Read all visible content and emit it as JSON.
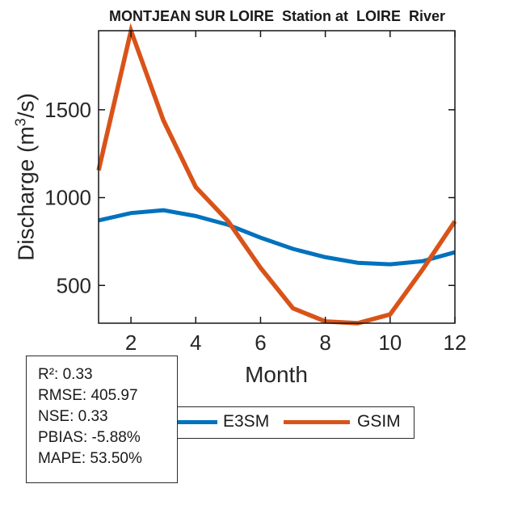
{
  "title": "MONTJEAN SUR LOIRE  Station at  LOIRE  River",
  "axes": {
    "xlabel": "Month",
    "ylabel_prefix": "Discharge (m",
    "ylabel_sup": "3",
    "ylabel_suffix": "/s)"
  },
  "stats_box": {
    "lines": [
      "R²: 0.33",
      "RMSE: 405.97",
      "NSE: 0.33",
      "PBIAS: -5.88%",
      "MAPE: 53.50%"
    ]
  },
  "legend": {
    "entries": [
      {
        "label": "E3SM",
        "color": "#0072BD"
      },
      {
        "label": "GSIM",
        "color": "#D95319"
      }
    ]
  },
  "colors": {
    "e3sm_line": "#0072BD",
    "gsim_line": "#D95319",
    "axis": "#151515",
    "tick_text": "#262626"
  },
  "chart_data": {
    "type": "line",
    "title": "MONTJEAN SUR LOIRE  Station at  LOIRE  River",
    "xlabel": "Month",
    "ylabel": "Discharge (m³/s)",
    "x": [
      1,
      2,
      3,
      4,
      5,
      6,
      7,
      8,
      9,
      10,
      11,
      12
    ],
    "series": [
      {
        "name": "E3SM",
        "color": "#0072BD",
        "values": [
          870,
          912,
          928,
          895,
          845,
          772,
          708,
          661,
          629,
          620,
          638,
          689
        ]
      },
      {
        "name": "GSIM",
        "color": "#D95319",
        "values": [
          1155,
          1950,
          1440,
          1060,
          865,
          600,
          370,
          295,
          285,
          335,
          590,
          865
        ]
      }
    ],
    "xlim": [
      1,
      12
    ],
    "ylim": [
      285,
      1950
    ],
    "xticks": [
      2,
      4,
      6,
      8,
      10,
      12
    ],
    "yticks": [
      500,
      1000,
      1500
    ],
    "grid": false,
    "legend_position": "below"
  }
}
